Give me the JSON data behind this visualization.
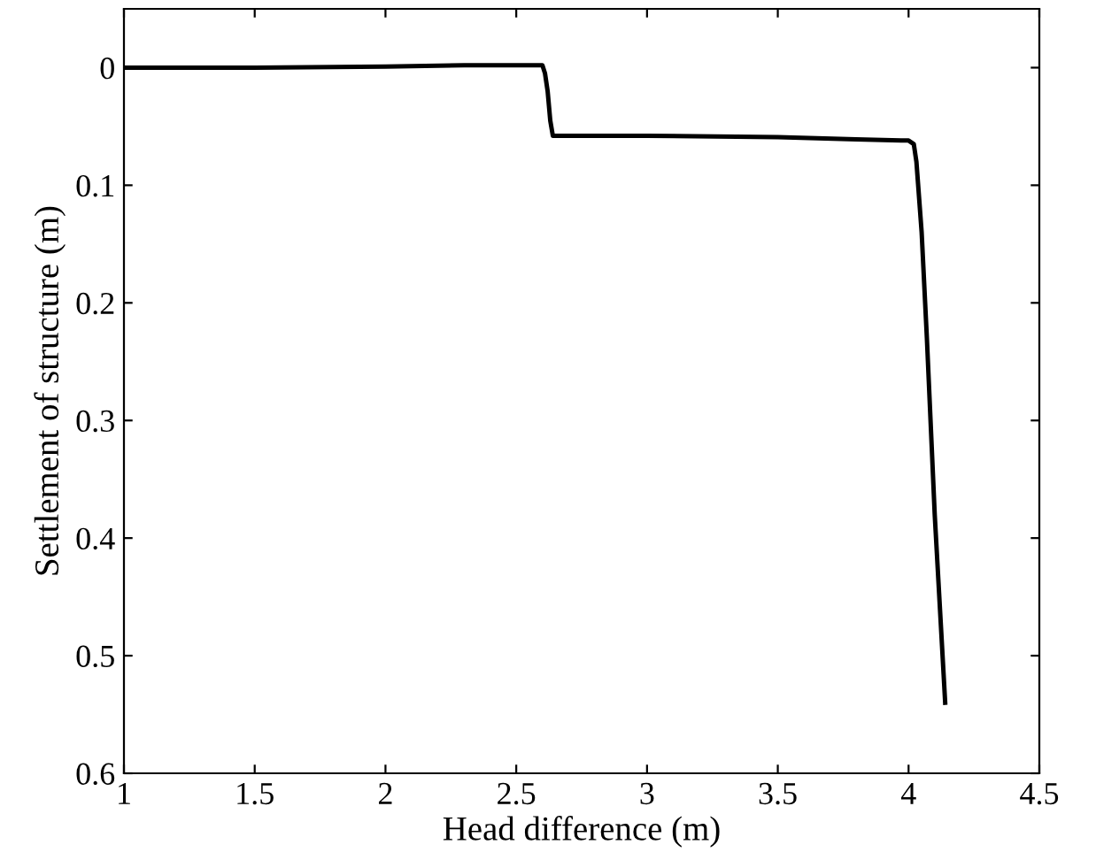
{
  "chart_data": {
    "type": "line",
    "xlabel": "Head difference (m)",
    "ylabel": "Settlement of structure (m)",
    "series": [
      {
        "color": "#000000",
        "x": [
          1,
          1.5,
          2.0,
          2.3,
          2.6,
          2.61,
          2.62,
          2.63,
          2.64,
          3.0,
          3.5,
          3.8,
          4.0,
          4.02,
          4.03,
          4.05,
          4.07,
          4.1,
          4.14
        ],
        "values": [
          0,
          0,
          -0.001,
          -0.002,
          -0.002,
          0.005,
          0.02,
          0.045,
          0.058,
          0.058,
          0.059,
          0.061,
          0.062,
          0.065,
          0.08,
          0.14,
          0.23,
          0.38,
          0.54
        ]
      }
    ],
    "xlim": [
      1,
      4.5
    ],
    "xticks": [
      1,
      1.5,
      2,
      2.5,
      3,
      3.5,
      4,
      4.5
    ],
    "ylim": [
      0.6,
      -0.05
    ],
    "yticks": [
      0,
      0.1,
      0.2,
      0.3,
      0.4,
      0.5,
      0.6
    ],
    "grid": false,
    "legend": false,
    "marker": "none",
    "line_style": "solid"
  }
}
